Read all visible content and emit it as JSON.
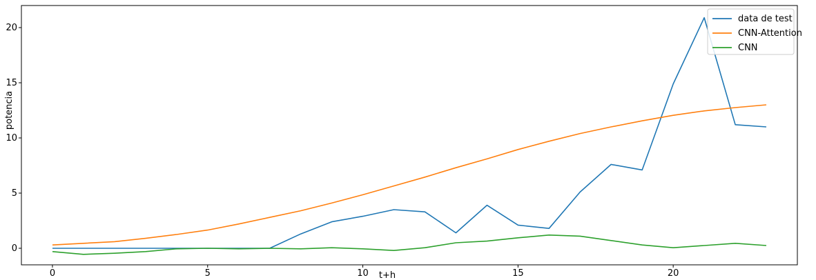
{
  "chart_data": {
    "type": "line",
    "title": "",
    "xlabel": "t+h",
    "ylabel": "potencia",
    "xlim": [
      -1,
      24
    ],
    "ylim": [
      -1.5,
      22
    ],
    "x_ticks": [
      0,
      5,
      10,
      15,
      20
    ],
    "y_ticks": [
      0,
      5,
      10,
      15,
      20
    ],
    "grid": false,
    "legend_position": "top-right",
    "x": [
      0,
      1,
      2,
      3,
      4,
      5,
      6,
      7,
      8,
      9,
      10,
      11,
      12,
      13,
      14,
      15,
      16,
      17,
      18,
      19,
      20,
      21,
      22,
      23
    ],
    "series": [
      {
        "name": "data de test",
        "color": "#1f77b4",
        "values": [
          0.0,
          0.0,
          0.0,
          0.0,
          0.0,
          0.0,
          0.0,
          0.0,
          1.3,
          2.4,
          2.9,
          3.5,
          3.3,
          1.4,
          3.9,
          2.1,
          1.8,
          5.1,
          7.6,
          7.1,
          14.9,
          20.9,
          11.2,
          11.0
        ]
      },
      {
        "name": "CNN-Attention",
        "color": "#ff7f0e",
        "values": [
          0.3,
          0.45,
          0.6,
          0.9,
          1.25,
          1.65,
          2.2,
          2.8,
          3.4,
          4.1,
          4.85,
          5.65,
          6.45,
          7.3,
          8.1,
          8.95,
          9.7,
          10.4,
          11.0,
          11.55,
          12.05,
          12.45,
          12.75,
          13.0
        ]
      },
      {
        "name": "CNN",
        "color": "#2ca02c",
        "values": [
          -0.3,
          -0.55,
          -0.45,
          -0.3,
          -0.05,
          0.0,
          -0.05,
          0.0,
          -0.05,
          0.05,
          -0.05,
          -0.2,
          0.05,
          0.5,
          0.65,
          0.95,
          1.2,
          1.1,
          0.7,
          0.3,
          0.05,
          0.25,
          0.45,
          0.25
        ]
      }
    ]
  }
}
